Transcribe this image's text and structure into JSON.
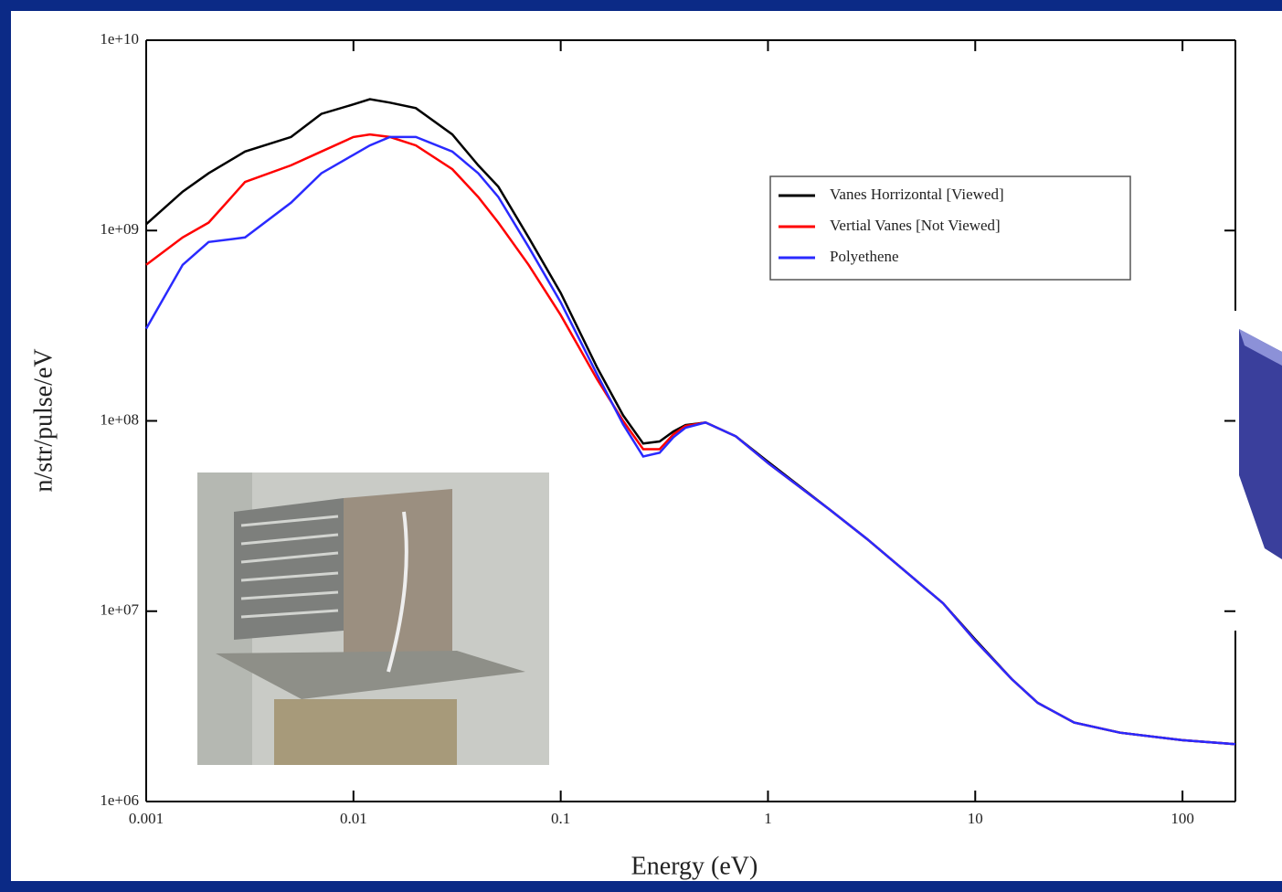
{
  "chart_data": {
    "type": "line",
    "xlabel": "Energy (eV)",
    "ylabel": "n/str/pulse/eV",
    "xscale": "log",
    "yscale": "log",
    "legend": "upper right",
    "x": [
      0.001,
      0.0015,
      0.002,
      0.003,
      0.005,
      0.007,
      0.01,
      0.012,
      0.015,
      0.02,
      0.03,
      0.04,
      0.05,
      0.07,
      0.1,
      0.15,
      0.2,
      0.25,
      0.3,
      0.35,
      0.4,
      0.5,
      0.7,
      1,
      2,
      3,
      5,
      7,
      10,
      15,
      20,
      30,
      50,
      100,
      180
    ],
    "series": [
      {
        "name": "Vanes Horrizontal [Viewed]",
        "color": "#000000",
        "values": [
          1080000000.0,
          1600000000.0,
          2000000000.0,
          2600000000.0,
          3100000000.0,
          4100000000.0,
          4600000000.0,
          4900000000.0,
          4700000000.0,
          4400000000.0,
          3200000000.0,
          2200000000.0,
          1700000000.0,
          920000000.0,
          470000000.0,
          190000000.0,
          107000000.0,
          76000000.0,
          78000000.0,
          88000000.0,
          95000000.0,
          98000000.0,
          83000000.0,
          61000000.0,
          34000000.0,
          24000000.0,
          15000000.0,
          11000000.0,
          7100000.0,
          4400000.0,
          3300000.0,
          2600000.0,
          2300000.0,
          2100000.0,
          2000000.0
        ]
      },
      {
        "name": "Vertial Vanes [Not Viewed]",
        "color": "#ff0000",
        "values": [
          660000000.0,
          920000000.0,
          1100000000.0,
          1800000000.0,
          2200000000.0,
          2600000000.0,
          3100000000.0,
          3200000000.0,
          3100000000.0,
          2800000000.0,
          2100000000.0,
          1500000000.0,
          1100000000.0,
          660000000.0,
          360000000.0,
          165000000.0,
          100000000.0,
          71000000.0,
          71000000.0,
          85000000.0,
          94000000.0,
          98000000.0,
          83000000.0,
          60000000.0,
          34000000.0,
          24000000.0,
          15000000.0,
          11000000.0,
          7000000.0,
          4400000.0,
          3300000.0,
          2600000.0,
          2300000.0,
          2100000.0,
          2000000.0
        ]
      },
      {
        "name": "Polyethene",
        "color": "#2a2aff",
        "values": [
          305000000.0,
          660000000.0,
          870000000.0,
          920000000.0,
          1400000000.0,
          2000000000.0,
          2500000000.0,
          2800000000.0,
          3100000000.0,
          3100000000.0,
          2600000000.0,
          2000000000.0,
          1500000000.0,
          820000000.0,
          420000000.0,
          175000000.0,
          96000000.0,
          65000000.0,
          68000000.0,
          82000000.0,
          92000000.0,
          98000000.0,
          83000000.0,
          60000000.0,
          34000000.0,
          24000000.0,
          15000000.0,
          11000000.0,
          7000000.0,
          4400000.0,
          3300000.0,
          2600000.0,
          2300000.0,
          2100000.0,
          2000000.0
        ]
      }
    ],
    "xlim": [
      0.001,
      180
    ],
    "ylim": [
      1000000.0,
      10000000000.0
    ],
    "xticks": [
      0.001,
      0.01,
      0.1,
      1,
      10,
      100
    ],
    "yticks": [
      {
        "value": 1000000.0,
        "label": "1e+06"
      },
      {
        "value": 10000000.0,
        "label": "1e+07"
      },
      {
        "value": 100000000.0,
        "label": "1e+08"
      },
      {
        "value": 1000000000.0,
        "label": "1e+09"
      },
      {
        "value": 10000000000.0,
        "label": "1e+10"
      }
    ],
    "grid": false
  }
}
